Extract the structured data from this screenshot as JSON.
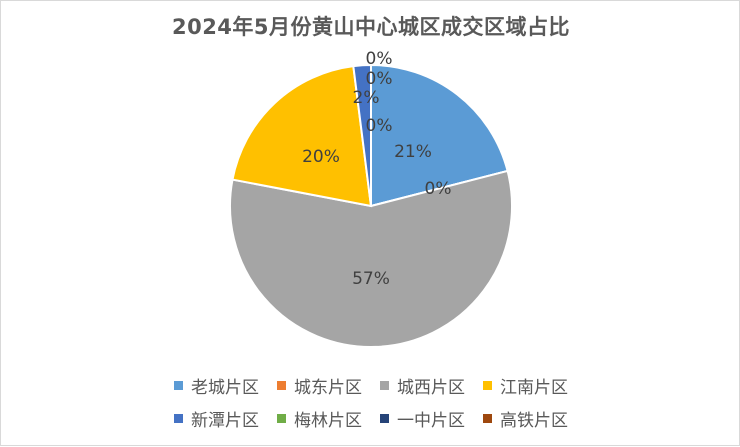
{
  "chart_data": {
    "type": "pie",
    "title": "2024年5月份黄山中心城区成交区域占比",
    "slices": [
      {
        "name": "老城片区",
        "value": 21,
        "label": "21%",
        "color": "#5B9BD5"
      },
      {
        "name": "城东片区",
        "value": 0,
        "label": "0%",
        "color": "#ED7D31"
      },
      {
        "name": "城西片区",
        "value": 57,
        "label": "57%",
        "color": "#A5A5A5"
      },
      {
        "name": "江南片区",
        "value": 20,
        "label": "20%",
        "color": "#FFC000"
      },
      {
        "name": "新潭片区",
        "value": 2,
        "label": "2%",
        "color": "#4472C4"
      },
      {
        "name": "梅林片区",
        "value": 0,
        "label": "0%",
        "color": "#70AD47"
      },
      {
        "name": "一中片区",
        "value": 0,
        "label": "0%",
        "color": "#264478"
      },
      {
        "name": "高铁片区",
        "value": 0,
        "label": "0%",
        "color": "#9E480E"
      }
    ],
    "legend": "bottom"
  }
}
